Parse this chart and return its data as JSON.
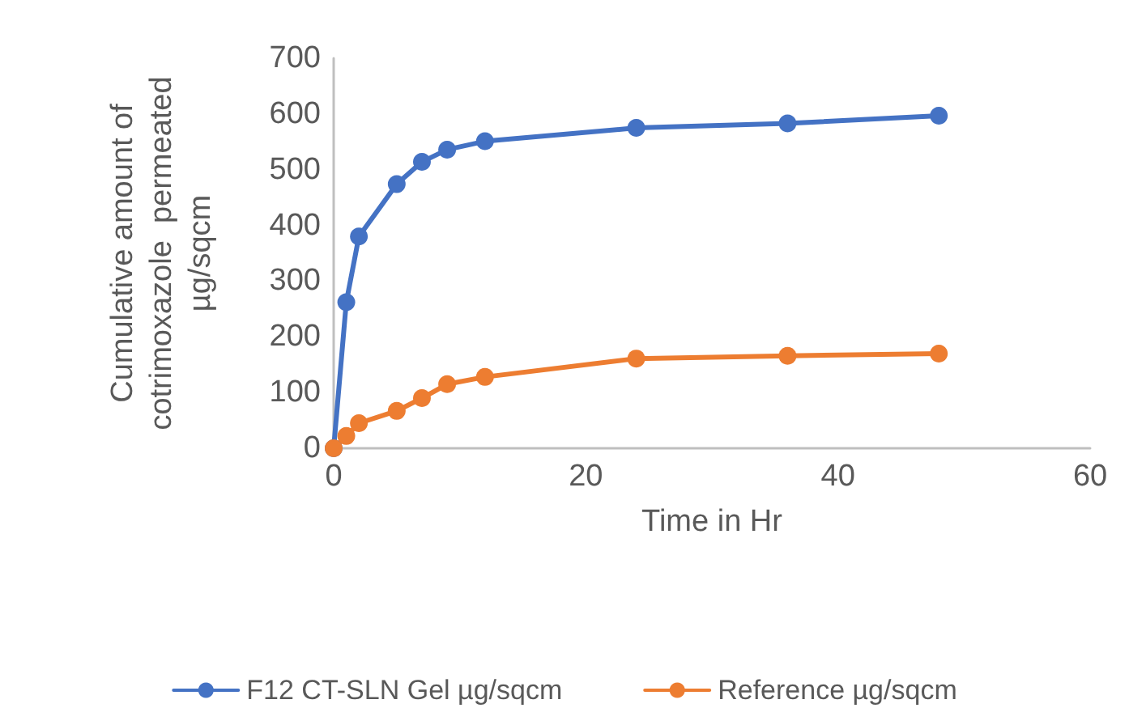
{
  "chart_data": {
    "type": "line",
    "xlabel": "Time in Hr",
    "ylabel": "Cumulative amount of cotrimoxazole  permeated µg/sqcm",
    "x": [
      0,
      1,
      2,
      5,
      7,
      9,
      12,
      24,
      36,
      48
    ],
    "series": [
      {
        "name": "F12 CT-SLN Gel µg/sqcm",
        "color": "#4472c4",
        "values": [
          0,
          262,
          380,
          474,
          514,
          536,
          551,
          575,
          583,
          597
        ]
      },
      {
        "name": "Reference µg/sqcm",
        "color": "#ed7d31",
        "values": [
          0,
          22,
          45,
          67,
          90,
          115,
          128,
          161,
          166,
          170
        ]
      }
    ],
    "xlim": [
      0,
      60
    ],
    "xticks": [
      0,
      20,
      40,
      60
    ],
    "ylim": [
      0,
      700
    ],
    "yticks": [
      0,
      100,
      200,
      300,
      400,
      500,
      600,
      700
    ],
    "grid": false,
    "legend": "bottom",
    "marker": "circle",
    "line_style": "solid"
  }
}
